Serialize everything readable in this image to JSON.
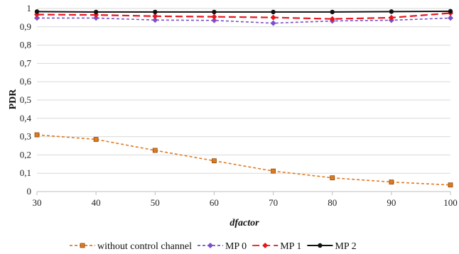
{
  "chart_data": {
    "type": "line",
    "title": "",
    "xlabel": "dfactor",
    "ylabel": "PDR",
    "x": [
      30,
      40,
      50,
      60,
      70,
      80,
      90,
      100
    ],
    "x_tick_labels": [
      "30",
      "40",
      "50",
      "60",
      "70",
      "80",
      "90",
      "100"
    ],
    "y_tick_labels": [
      "0",
      "0,1",
      "0,2",
      "0,3",
      "0,4",
      "0,5",
      "0,6",
      "0,7",
      "0,8",
      "0,9",
      "1"
    ],
    "ylim": [
      0,
      1
    ],
    "grid": "horizontal",
    "legend_position": "bottom",
    "series": [
      {
        "name": "without control channel",
        "values": [
          0.31,
          0.285,
          0.225,
          0.168,
          0.112,
          0.075,
          0.052,
          0.036
        ],
        "color": "#E07A1F",
        "line_style": "dashed",
        "marker": "square"
      },
      {
        "name": "MP 0",
        "values": [
          0.948,
          0.948,
          0.937,
          0.935,
          0.92,
          0.932,
          0.936,
          0.948
        ],
        "color": "#7B4FC9",
        "line_style": "dashed",
        "marker": "diamond"
      },
      {
        "name": "MP 1",
        "values": [
          0.967,
          0.965,
          0.958,
          0.955,
          0.951,
          0.943,
          0.95,
          0.975
        ],
        "color": "#E8141B",
        "line_style": "long-dashed",
        "marker": "diamond"
      },
      {
        "name": "MP 2",
        "values": [
          0.983,
          0.981,
          0.981,
          0.981,
          0.981,
          0.981,
          0.983,
          0.985
        ],
        "color": "#111111",
        "line_style": "solid",
        "marker": "circle"
      }
    ]
  }
}
